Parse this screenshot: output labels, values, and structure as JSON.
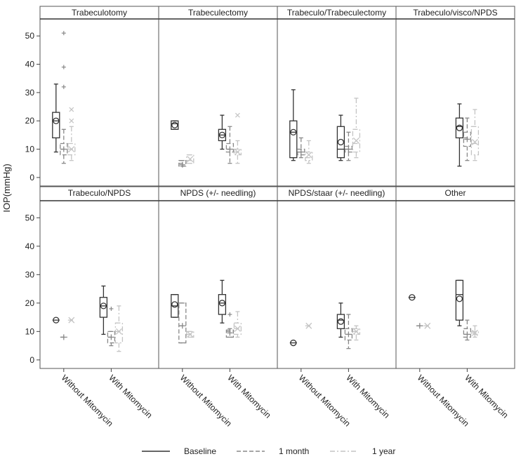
{
  "chart_data": {
    "type": "boxplot",
    "ylabel": "IOP(mmHg)",
    "ylim": [
      -3,
      56
    ],
    "yticks": [
      0,
      10,
      20,
      30,
      40,
      50
    ],
    "categories": [
      "Without Mitomycin",
      "With Mitomycin"
    ],
    "legend": {
      "position": "bottom",
      "entries": [
        {
          "name": "Baseline",
          "style": "solid",
          "color": "#333333"
        },
        {
          "name": "1 month",
          "style": "dashed",
          "color": "#888888"
        },
        {
          "name": "1 year",
          "style": "dashdot",
          "color": "#c4c4c4"
        }
      ]
    },
    "panels": [
      {
        "title": "Trabeculotomy",
        "groups": [
          {
            "category": "Without Mitomycin",
            "series": [
              {
                "name": "Baseline",
                "min": 9,
                "q1": 14,
                "median": 20,
                "q3": 23,
                "max": 33,
                "mean": 20
              },
              {
                "name": "1 month",
                "min": 5,
                "q1": 8,
                "median": 10,
                "q3": 12,
                "max": 17,
                "mean": 10,
                "outliers": [
                  32,
                  39,
                  51
                ]
              },
              {
                "name": "1 year",
                "min": 6,
                "q1": 8,
                "median": 10,
                "q3": 12,
                "max": 18,
                "mean": 10,
                "outliers": [
                  20,
                  24
                ]
              }
            ]
          },
          {
            "category": "With Mitomycin",
            "series": []
          }
        ]
      },
      {
        "title": "Trabeculectomy",
        "groups": [
          {
            "category": "Without Mitomycin",
            "series": [
              {
                "name": "Baseline",
                "min": 17,
                "q1": 17,
                "median": 19,
                "q3": 20,
                "max": 20,
                "mean": 18.5
              },
              {
                "name": "1 month",
                "min": 4,
                "q1": 4,
                "median": 5,
                "q3": 6,
                "max": 6,
                "mean": 4.5
              },
              {
                "name": "1 year",
                "min": 5,
                "q1": 5,
                "median": 6,
                "q3": 8,
                "max": 8,
                "mean": 6.5
              }
            ]
          },
          {
            "category": "With Mitomycin",
            "series": [
              {
                "name": "Baseline",
                "min": 10,
                "q1": 13,
                "median": 15,
                "q3": 17,
                "max": 22,
                "mean": 15
              },
              {
                "name": "1 month",
                "min": 5,
                "q1": 9,
                "median": 10,
                "q3": 12,
                "max": 18,
                "mean": 10
              },
              {
                "name": "1 year",
                "min": 5,
                "q1": 8,
                "median": 9,
                "q3": 10,
                "max": 13,
                "mean": 9,
                "outliers": [
                  22
                ]
              }
            ]
          }
        ]
      },
      {
        "title": "Trabeculo/Trabeculectomy",
        "groups": [
          {
            "category": "Without Mitomycin",
            "series": [
              {
                "name": "Baseline",
                "min": 6,
                "q1": 7,
                "median": 16,
                "q3": 20,
                "max": 31,
                "mean": 16
              },
              {
                "name": "1 month",
                "min": 7,
                "q1": 8,
                "median": 9,
                "q3": 10,
                "max": 14,
                "mean": 9
              },
              {
                "name": "1 year",
                "min": 5,
                "q1": 6,
                "median": 7,
                "q3": 9,
                "max": 13,
                "mean": 8
              }
            ]
          },
          {
            "category": "With Mitomycin",
            "series": [
              {
                "name": "Baseline",
                "min": 6,
                "q1": 7,
                "median": 10,
                "q3": 18,
                "max": 22,
                "mean": 12.5
              },
              {
                "name": "1 month",
                "min": 6,
                "q1": 9,
                "median": 10,
                "q3": 11,
                "max": 16,
                "mean": 10
              },
              {
                "name": "1 year",
                "min": 7,
                "q1": 9,
                "median": 12,
                "q3": 17,
                "max": 28,
                "mean": 13
              }
            ]
          }
        ]
      },
      {
        "title": "Trabeculo/visco/NPDS",
        "groups": [
          {
            "category": "Without Mitomycin",
            "series": []
          },
          {
            "category": "With Mitomycin",
            "series": [
              {
                "name": "Baseline",
                "min": 4,
                "q1": 14,
                "median": 18,
                "q3": 21,
                "max": 26,
                "mean": 17.5
              },
              {
                "name": "1 month",
                "min": 6,
                "q1": 11,
                "median": 14,
                "q3": 16,
                "max": 21,
                "mean": 13.5
              },
              {
                "name": "1 year",
                "min": 6,
                "q1": 8,
                "median": 12,
                "q3": 18,
                "max": 24,
                "mean": 12.5
              }
            ]
          }
        ]
      },
      {
        "title": "Trabeculo/NPDS",
        "groups": [
          {
            "category": "Without Mitomycin",
            "series": [
              {
                "name": "Baseline",
                "min": 14,
                "q1": 14,
                "median": 14,
                "q3": 14,
                "max": 14,
                "mean": 14
              },
              {
                "name": "1 month",
                "min": 8,
                "q1": 8,
                "median": 8,
                "q3": 8,
                "max": 8,
                "mean": 8
              },
              {
                "name": "1 year",
                "min": 14,
                "q1": 14,
                "median": 14,
                "q3": 14,
                "max": 14,
                "mean": 14
              }
            ]
          },
          {
            "category": "With Mitomycin",
            "series": [
              {
                "name": "Baseline",
                "min": 9,
                "q1": 15,
                "median": 19,
                "q3": 22,
                "max": 26,
                "mean": 19
              },
              {
                "name": "1 month",
                "min": 5,
                "q1": 6,
                "median": 8,
                "q3": 10,
                "max": 10,
                "mean": 8,
                "outliers": [
                  18
                ]
              },
              {
                "name": "1 year",
                "min": 3,
                "q1": 6,
                "median": 10,
                "q3": 13,
                "max": 19,
                "mean": 10
              }
            ]
          }
        ]
      },
      {
        "title": "NPDS (+/- needling)",
        "groups": [
          {
            "category": "Without Mitomycin",
            "series": [
              {
                "name": "Baseline",
                "min": 15,
                "q1": 15,
                "median": 19,
                "q3": 23,
                "max": 23,
                "mean": 19.5
              },
              {
                "name": "1 month",
                "min": 6,
                "q1": 6,
                "median": 12,
                "q3": 20,
                "max": 20,
                "mean": 12
              },
              {
                "name": "1 year",
                "min": 8,
                "q1": 8,
                "median": 9,
                "q3": 10,
                "max": 10,
                "mean": 9
              }
            ]
          },
          {
            "category": "With Mitomycin",
            "series": [
              {
                "name": "Baseline",
                "min": 13,
                "q1": 16,
                "median": 20,
                "q3": 23,
                "max": 28,
                "mean": 20
              },
              {
                "name": "1 month",
                "min": 8,
                "q1": 8,
                "median": 10,
                "q3": 10.5,
                "max": 11,
                "mean": 9.5,
                "outliers": [
                  16
                ]
              },
              {
                "name": "1 year",
                "min": 8,
                "q1": 9,
                "median": 11,
                "q3": 13,
                "max": 17,
                "mean": 11
              }
            ]
          }
        ]
      },
      {
        "title": "NPDS/staar (+/- needling)",
        "groups": [
          {
            "category": "Without Mitomycin",
            "series": [
              {
                "name": "Baseline",
                "min": 6,
                "q1": 6,
                "median": 6,
                "q3": 6,
                "max": 6,
                "mean": 6
              },
              {
                "name": "1 month",
                "min": null,
                "q1": null,
                "median": null,
                "q3": null,
                "max": null,
                "mean": null
              },
              {
                "name": "1 year",
                "min": 12,
                "q1": 12,
                "median": 12,
                "q3": 12,
                "max": 12,
                "mean": 12
              }
            ]
          },
          {
            "category": "With Mitomycin",
            "series": [
              {
                "name": "Baseline",
                "min": 8,
                "q1": 11,
                "median": 14,
                "q3": 16,
                "max": 20,
                "mean": 13.5
              },
              {
                "name": "1 month",
                "min": 4,
                "q1": 7,
                "median": 9,
                "q3": 11,
                "max": 16,
                "mean": 9
              },
              {
                "name": "1 year",
                "min": 7,
                "q1": 9,
                "median": 10,
                "q3": 11,
                "max": 12,
                "mean": 10
              }
            ]
          }
        ]
      },
      {
        "title": "Other",
        "groups": [
          {
            "category": "Without Mitomycin",
            "series": [
              {
                "name": "Baseline",
                "min": 22,
                "q1": 22,
                "median": 22,
                "q3": 22,
                "max": 22,
                "mean": 22
              },
              {
                "name": "1 month",
                "min": 12,
                "q1": 12,
                "median": 12,
                "q3": 12,
                "max": 12,
                "mean": 12
              },
              {
                "name": "1 year",
                "min": 12,
                "q1": 12,
                "median": 12,
                "q3": 12,
                "max": 12,
                "mean": 12
              }
            ]
          },
          {
            "category": "With Mitomycin",
            "series": [
              {
                "name": "Baseline",
                "min": 12,
                "q1": 14,
                "median": 23,
                "q3": 28,
                "max": 28,
                "mean": 21.5
              },
              {
                "name": "1 month",
                "min": 7,
                "q1": 8,
                "median": 9,
                "q3": 11,
                "max": 14,
                "mean": 9
              },
              {
                "name": "1 year",
                "min": 8,
                "q1": 9,
                "median": 9.5,
                "q3": 10,
                "max": 12,
                "mean": 9.5
              }
            ]
          }
        ]
      }
    ]
  }
}
